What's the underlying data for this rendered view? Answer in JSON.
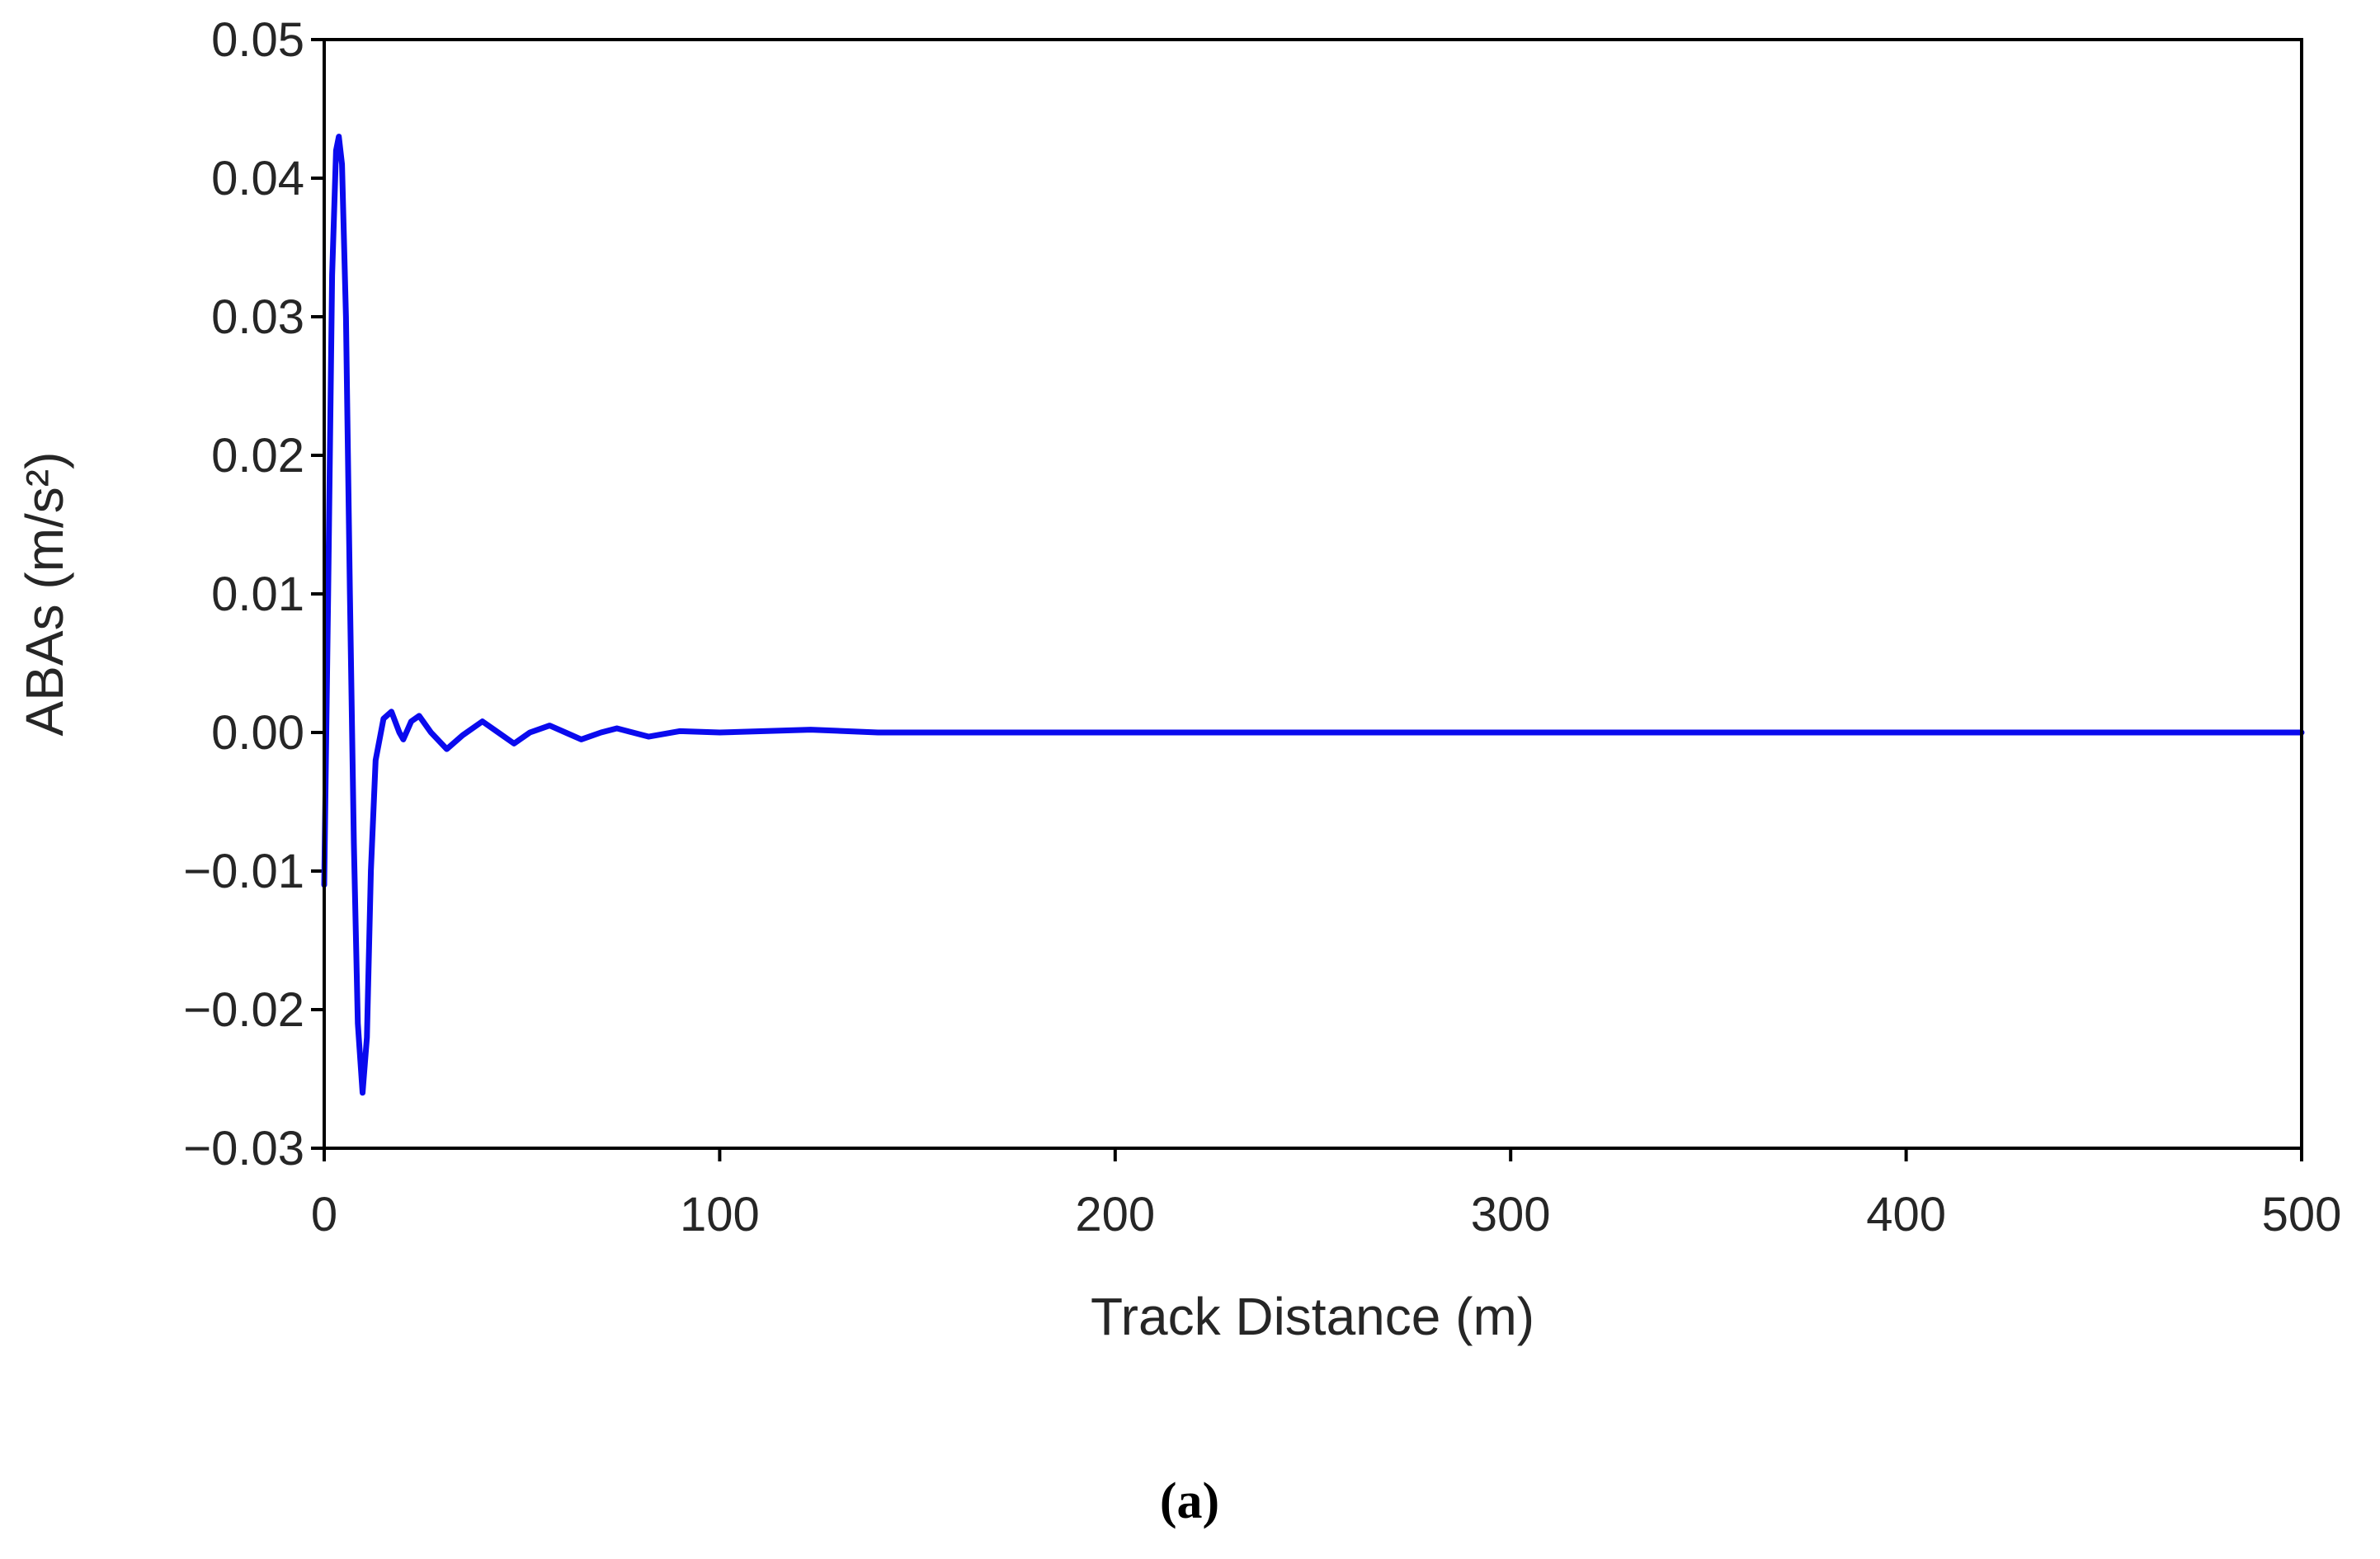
{
  "chart_data": {
    "type": "line",
    "xlabel": "Track Distance (m)",
    "ylabel": "ABAs (m/s²)",
    "caption": "(a)",
    "xlim": [
      0,
      500
    ],
    "xticks": [
      0,
      100,
      200,
      300,
      400,
      500
    ],
    "ylim": [
      -0.03,
      0.05
    ],
    "yticks": [
      {
        "value": -0.03,
        "label": "−0.03"
      },
      {
        "value": -0.02,
        "label": "−0.02"
      },
      {
        "value": -0.01,
        "label": "−0.01"
      },
      {
        "value": 0,
        "label": "0.00"
      },
      0.01,
      0.02,
      0.03,
      0.04,
      0.05
    ],
    "grid": false,
    "x": [
      0,
      1,
      2,
      3,
      3.7,
      4.5,
      5.5,
      6.5,
      7.5,
      8.5,
      9.7,
      10.8,
      11.8,
      13,
      15,
      17,
      19,
      20,
      22,
      24,
      27,
      31,
      35,
      40,
      44,
      48,
      52,
      57,
      61,
      65,
      70,
      74,
      78,
      82,
      90,
      100,
      123,
      140,
      500
    ],
    "series": [
      {
        "name": "ABAs",
        "color": "#0a0aee",
        "values": [
          -0.011,
          0.01,
          0.033,
          0.042,
          0.043,
          0.041,
          0.03,
          0.01,
          -0.008,
          -0.021,
          -0.026,
          -0.022,
          -0.01,
          -0.002,
          0.001,
          0.0015,
          0,
          -0.0005,
          0.0008,
          0.0012,
          0,
          -0.0012,
          -0.0002,
          0.0008,
          0,
          -0.0008,
          0,
          0.0005,
          0,
          -0.0005,
          0,
          0.0003,
          0,
          -0.0003,
          0.0001,
          0,
          0.0002,
          0,
          0
        ]
      }
    ]
  }
}
